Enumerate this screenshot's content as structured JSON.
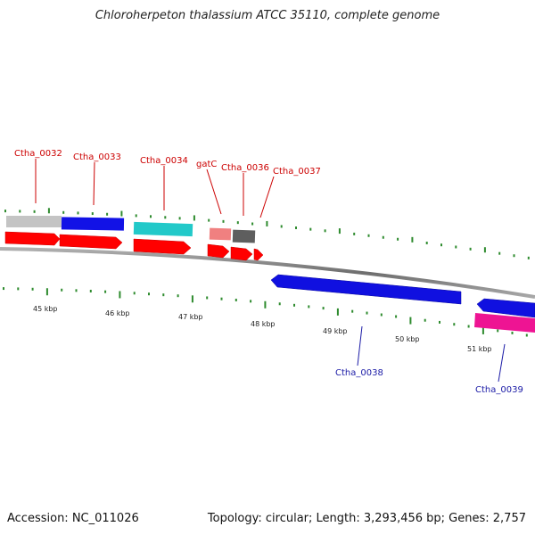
{
  "title": "Chloroherpeton thalassium ATCC 35110, complete genome",
  "footer": {
    "accession": "Accession: NC_011026",
    "topology": "Topology: circular; Length: 3,293,456 bp; Genes: 2,757"
  },
  "colors": {
    "backbone": "#8a8a8a",
    "tick": "#2e8b2e",
    "label_forward": "#cc0000",
    "label_reverse": "#1a1aa6",
    "scale_label": "#222222"
  },
  "scale_labels": [
    "45 kbp",
    "46 kbp",
    "47 kbp",
    "48 kbp",
    "49 kbp",
    "50 kbp",
    "51 kbp"
  ],
  "gene_labels": [
    {
      "name": "Ctha_0032",
      "strand": "forward"
    },
    {
      "name": "Ctha_0033",
      "strand": "forward"
    },
    {
      "name": "Ctha_0034",
      "strand": "forward"
    },
    {
      "name": "gatC",
      "strand": "forward"
    },
    {
      "name": "Ctha_0036",
      "strand": "forward"
    },
    {
      "name": "Ctha_0037",
      "strand": "forward"
    },
    {
      "name": "Ctha_0038",
      "strand": "reverse"
    },
    {
      "name": "Ctha_0039",
      "strand": "reverse"
    }
  ],
  "features": [
    {
      "name": "feature-cds-0032",
      "color": "#ff0000",
      "type": "arrow"
    },
    {
      "name": "feature-cds-0033",
      "color": "#ff0000",
      "type": "arrow"
    },
    {
      "name": "feature-cds-0034",
      "color": "#ff0000",
      "type": "arrow"
    },
    {
      "name": "feature-cds-gatc",
      "color": "#ff0000",
      "type": "arrow"
    },
    {
      "name": "feature-cds-0036",
      "color": "#ff0000",
      "type": "arrow"
    },
    {
      "name": "feature-cds-0037",
      "color": "#ff0000",
      "type": "arrow"
    },
    {
      "name": "feature-cog-0032",
      "color": "#c0c0c0",
      "type": "box"
    },
    {
      "name": "feature-cog-0033",
      "color": "#1010e0",
      "type": "box"
    },
    {
      "name": "feature-cog-0034",
      "color": "#20c8c8",
      "type": "box"
    },
    {
      "name": "feature-cog-gatc",
      "color": "#f08080",
      "type": "box"
    },
    {
      "name": "feature-cog-0036",
      "color": "#606060",
      "type": "box"
    },
    {
      "name": "feature-cds-0038",
      "color": "#1010e0",
      "type": "arrow"
    },
    {
      "name": "feature-cds-0039",
      "color": "#1010e0",
      "type": "arrow"
    },
    {
      "name": "feature-cog-0039",
      "color": "#ee1493",
      "type": "box"
    }
  ]
}
